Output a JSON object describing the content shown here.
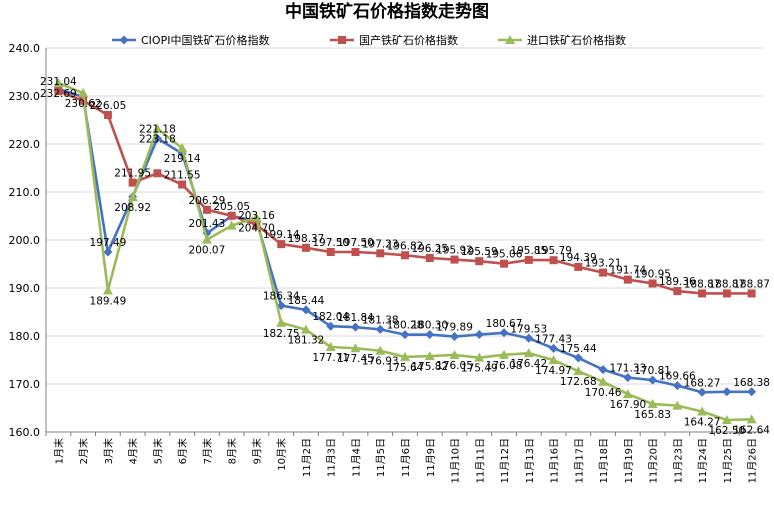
{
  "chart_data": {
    "type": "line",
    "title": "中国铁矿石价格指数走势图",
    "categories": [
      "1月末",
      "2月末",
      "3月末",
      "4月末",
      "5月末",
      "6月末",
      "7月末",
      "8月末",
      "9月末",
      "10月末",
      "11月2日",
      "11月3日",
      "11月4日",
      "11月5日",
      "11月6日",
      "11月9日",
      "11月10日",
      "11月11日",
      "11月12日",
      "11月13日",
      "11月16日",
      "11月17日",
      "11月18日",
      "11月19日",
      "11月20日",
      "11月23日",
      "11月24日",
      "11月25日",
      "11月26日"
    ],
    "ylim": [
      160,
      240
    ],
    "yticks": [
      "160.0",
      "170.0",
      "180.0",
      "190.0",
      "200.0",
      "210.0",
      "220.0",
      "230.0",
      "240.0"
    ],
    "grid": true,
    "legend_position": "top",
    "series": [
      {
        "name": "CIOPI中国铁矿石价格指数",
        "color": "#4472C4",
        "marker": "diamond",
        "values": [
          231.5,
          229.8,
          197.49,
          209.0,
          221.18,
          218.0,
          201.43,
          205.0,
          204.0,
          186.34,
          185.44,
          182.04,
          181.84,
          181.38,
          180.28,
          180.3,
          179.89,
          180.3,
          180.67,
          179.53,
          177.43,
          175.44,
          173.0,
          171.33,
          170.81,
          169.66,
          168.27,
          168.38,
          168.38
        ],
        "labels": [
          "",
          "",
          "197.49",
          "",
          "221.18",
          "",
          "201.43",
          "",
          "",
          "186.34",
          "185.44",
          "182.04",
          "181.84",
          "181.38",
          "180.28",
          "180.30",
          "179.89",
          "",
          "180.67",
          "179.53",
          "177.43",
          "175.44",
          "",
          "171.33",
          "170.81",
          "169.66",
          "168.27",
          "",
          "168.38"
        ]
      },
      {
        "name": "国产铁矿石价格指数",
        "color": "#C0504D",
        "marker": "square",
        "values": [
          231.04,
          229.0,
          226.05,
          211.95,
          213.9,
          211.55,
          206.29,
          205.05,
          203.16,
          199.14,
          198.37,
          197.5,
          197.5,
          197.23,
          196.82,
          196.25,
          195.92,
          195.59,
          195.06,
          195.85,
          195.79,
          194.39,
          193.21,
          191.74,
          190.95,
          189.36,
          188.87,
          188.87,
          188.87
        ],
        "labels": [
          "231.04",
          "",
          "226.05",
          "211.95",
          "",
          "211.55",
          "206.29",
          "205.05",
          "203.16",
          "199.14",
          "198.37",
          "197.50",
          "197.50",
          "197.23",
          "196.82",
          "196.25",
          "195.92",
          "195.59",
          "195.06",
          "195.85",
          "195.79",
          "194.39",
          "193.21",
          "191.74",
          "190.95",
          "189.36",
          "188.87",
          "188.87",
          "188.87"
        ]
      },
      {
        "name": "进口铁矿石价格指数",
        "color": "#9BBB59",
        "marker": "triangle",
        "values": [
          232.69,
          230.62,
          189.49,
          208.92,
          223.18,
          219.14,
          200.07,
          203.0,
          204.7,
          182.75,
          181.32,
          177.71,
          177.45,
          176.93,
          175.64,
          175.82,
          176.05,
          175.49,
          176.08,
          176.42,
          174.97,
          172.68,
          170.46,
          167.9,
          165.83,
          165.5,
          164.27,
          162.5,
          162.64
        ],
        "labels": [
          "232.69",
          "230.62",
          "189.49",
          "208.92",
          "223.18",
          "219.14",
          "200.07",
          "",
          "204.70",
          "182.75",
          "181.32",
          "177.71",
          "177.45",
          "176.93",
          "175.64",
          "175.82",
          "176.05",
          "175.49",
          "176.08",
          "176.42",
          "174.97",
          "172.68",
          "170.46",
          "167.90",
          "165.83",
          "",
          "164.27",
          "162.50",
          "162.64"
        ]
      }
    ]
  }
}
